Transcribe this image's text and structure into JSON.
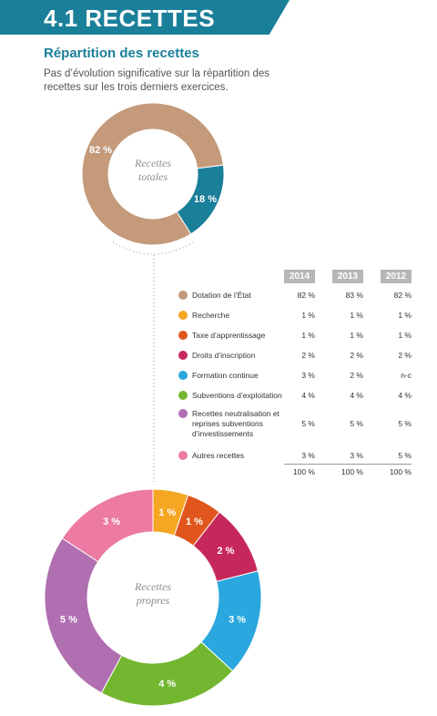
{
  "header": {
    "title": "4.1 RECETTES",
    "accent_color": "#1a7f99"
  },
  "section": {
    "subtitle": "Répartition des recettes",
    "intro": "Pas d’évolution significative sur la répartition des recettes sur les trois derniers exercices."
  },
  "table": {
    "columns": [
      "2014",
      "2013",
      "2012"
    ],
    "rows": [
      {
        "label": "Dotation de l’État",
        "color": "#c49a7a",
        "values": [
          "82 %",
          "83 %",
          "82 %"
        ]
      },
      {
        "label": "Recherche",
        "color": "#f5a623",
        "values": [
          "1 %",
          "1 %",
          "1 %"
        ]
      },
      {
        "label": "Taxe d’apprentissage",
        "color": "#e0561c",
        "values": [
          "1 %",
          "1 %",
          "1 %"
        ]
      },
      {
        "label": "Droits d’inscription",
        "color": "#c7285c",
        "values": [
          "2 %",
          "2 %",
          "2 %"
        ]
      },
      {
        "label": "Formation continue",
        "color": "#2aa7de",
        "values": [
          "3 %",
          "2 %",
          "n-c"
        ]
      },
      {
        "label": "Subventions d’exploitation",
        "color": "#72b72f",
        "values": [
          "4 %",
          "4 %",
          "4 %"
        ]
      },
      {
        "label": "Recettes neutralisation et reprises subventions d’investissements",
        "color": "#b06fb0",
        "values": [
          "5 %",
          "5 %",
          "5 %"
        ]
      },
      {
        "label": "Autres recettes",
        "color": "#ec7aa3",
        "values": [
          "3 %",
          "3 %",
          "5 %"
        ]
      }
    ],
    "totals": [
      "100 %",
      "100 %",
      "100 %"
    ]
  },
  "chart_data": [
    {
      "type": "pie",
      "title": "Recettes totales",
      "categories": [
        "",
        ""
      ],
      "values": [
        82,
        18
      ],
      "labels": [
        "82 %",
        "18 %"
      ],
      "colors": [
        "#c49a7a",
        "#1a7f99"
      ]
    },
    {
      "type": "pie",
      "title": "Recettes propres",
      "categories": [
        "Recherche",
        "Taxe d’apprentissage",
        "Droits d’inscription",
        "Formation continue",
        "Subventions d’exploitation",
        "Recettes neutralisation et reprises subventions d’investissements",
        "Autres recettes"
      ],
      "values": [
        1,
        1,
        2,
        3,
        4,
        5,
        3
      ],
      "labels": [
        "1 %",
        "1 %",
        "2 %",
        "3 %",
        "4 %",
        "5 %",
        "3 %"
      ],
      "colors": [
        "#f5a623",
        "#e0561c",
        "#c7285c",
        "#2aa7de",
        "#72b72f",
        "#b06fb0",
        "#ec7aa3"
      ]
    }
  ]
}
